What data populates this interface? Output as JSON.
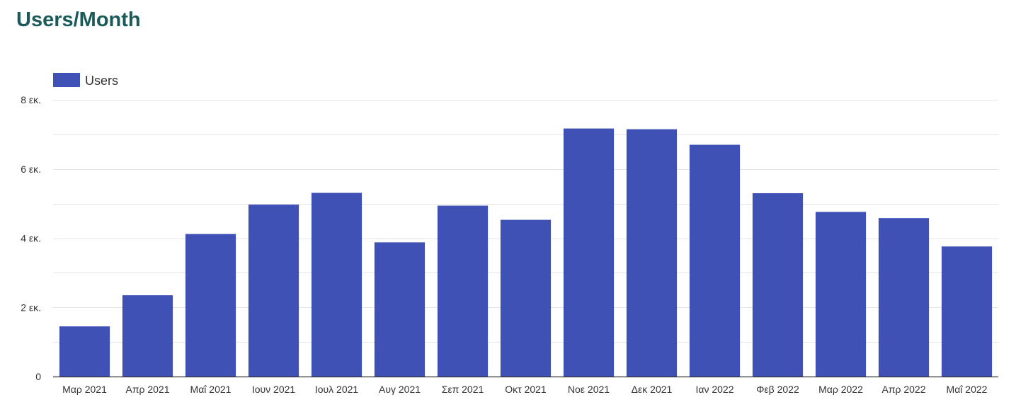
{
  "page": {
    "title": "Users/Month"
  },
  "colors": {
    "title": "#1c5a5a",
    "bar": "#4051b5",
    "grid": "#e4e4e4",
    "axis": "#333333"
  },
  "chart_data": {
    "type": "bar",
    "title": "Users/Month",
    "xlabel": "",
    "ylabel": "",
    "categories": [
      "Μαρ 2021",
      "Απρ 2021",
      "Μαΐ 2021",
      "Ιουν 2021",
      "Ιουλ 2021",
      "Αυγ 2021",
      "Σεπ 2021",
      "Οκτ 2021",
      "Νοε 2021",
      "Δεκ 2021",
      "Ιαν 2022",
      "Φεβ 2022",
      "Μαρ 2022",
      "Απρ 2022",
      "Μαΐ 2022"
    ],
    "series": [
      {
        "name": "Users",
        "values": [
          1450,
          2350,
          4120,
          4970,
          5310,
          3880,
          4940,
          4530,
          7170,
          7150,
          6700,
          5300,
          4760,
          4580,
          3760
        ]
      }
    ],
    "ylim": [
      0,
      8000
    ],
    "y_ticks": [
      0,
      2000,
      4000,
      6000,
      8000
    ],
    "y_tick_labels": [
      "0",
      "2 εκ.",
      "4 εκ.",
      "6 εκ.",
      "8 εκ."
    ],
    "grid": true,
    "legend_position": "top-left"
  }
}
